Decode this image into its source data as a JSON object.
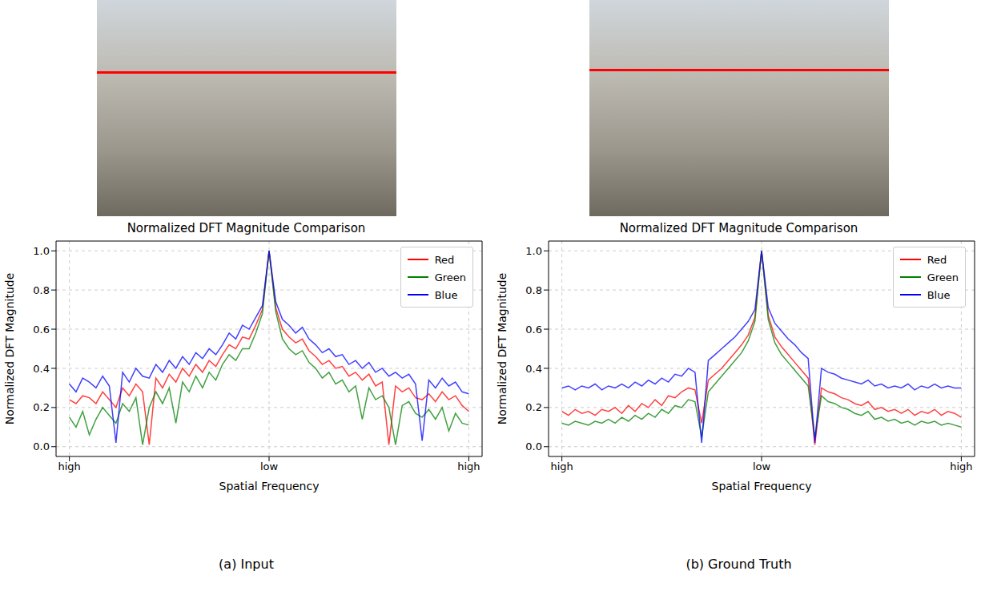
{
  "chart_data": [
    {
      "type": "line",
      "title": "Normalized DFT Magnitude Comparison",
      "caption": "(a) Input",
      "x_label": "Spatial Frequency",
      "y_label": "Normalized DFT Magnitude",
      "x": [
        -30,
        -29,
        -28,
        -27,
        -26,
        -25,
        -24,
        -23,
        -22,
        -21,
        -20,
        -19,
        -18,
        -17,
        -16,
        -15,
        -14,
        -13,
        -12,
        -11,
        -10,
        -9,
        -8,
        -7,
        -6,
        -5,
        -4,
        -3,
        -2,
        -1,
        0,
        1,
        2,
        3,
        4,
        5,
        6,
        7,
        8,
        9,
        10,
        11,
        12,
        13,
        14,
        15,
        16,
        17,
        18,
        19,
        20,
        21,
        22,
        23,
        24,
        25,
        26,
        27,
        28,
        29,
        30
      ],
      "xlim": [
        -32,
        32
      ],
      "xticks": [
        {
          "value": -30,
          "label": "high"
        },
        {
          "value": 0,
          "label": "low"
        },
        {
          "value": 30,
          "label": "high"
        }
      ],
      "ylim": [
        -0.05,
        1.05
      ],
      "yticks": [
        {
          "value": 0,
          "label": "0.0"
        },
        0.2,
        0.4,
        0.6,
        0.8,
        {
          "value": 1,
          "label": "1.0"
        }
      ],
      "grid": true,
      "legend": "upper right",
      "series": [
        {
          "name": "Red",
          "color": "#ff0000",
          "values": [
            0.24,
            0.22,
            0.26,
            0.25,
            0.22,
            0.28,
            0.24,
            0.2,
            0.3,
            0.26,
            0.32,
            0.28,
            0.01,
            0.35,
            0.3,
            0.37,
            0.33,
            0.4,
            0.36,
            0.42,
            0.38,
            0.44,
            0.41,
            0.47,
            0.52,
            0.5,
            0.56,
            0.55,
            0.62,
            0.7,
            1.0,
            0.71,
            0.6,
            0.56,
            0.53,
            0.55,
            0.49,
            0.46,
            0.42,
            0.44,
            0.4,
            0.41,
            0.36,
            0.38,
            0.34,
            0.37,
            0.31,
            0.33,
            0.01,
            0.31,
            0.28,
            0.3,
            0.25,
            0.24,
            0.27,
            0.23,
            0.28,
            0.24,
            0.26,
            0.21,
            0.18
          ]
        },
        {
          "name": "Green",
          "color": "#008000",
          "values": [
            0.15,
            0.1,
            0.18,
            0.06,
            0.14,
            0.2,
            0.16,
            0.12,
            0.22,
            0.18,
            0.25,
            0.01,
            0.2,
            0.28,
            0.22,
            0.3,
            0.12,
            0.33,
            0.28,
            0.36,
            0.3,
            0.38,
            0.34,
            0.42,
            0.47,
            0.44,
            0.5,
            0.5,
            0.58,
            0.68,
            1.0,
            0.69,
            0.55,
            0.5,
            0.47,
            0.49,
            0.43,
            0.4,
            0.35,
            0.38,
            0.32,
            0.34,
            0.28,
            0.31,
            0.14,
            0.3,
            0.24,
            0.26,
            0.2,
            0.01,
            0.21,
            0.23,
            0.17,
            0.15,
            0.19,
            0.14,
            0.2,
            0.08,
            0.17,
            0.12,
            0.11
          ]
        },
        {
          "name": "Blue",
          "color": "#0000ff",
          "values": [
            0.32,
            0.28,
            0.35,
            0.33,
            0.3,
            0.36,
            0.31,
            0.02,
            0.38,
            0.33,
            0.4,
            0.36,
            0.35,
            0.42,
            0.38,
            0.44,
            0.4,
            0.46,
            0.42,
            0.48,
            0.45,
            0.5,
            0.47,
            0.52,
            0.58,
            0.55,
            0.62,
            0.6,
            0.66,
            0.72,
            1.0,
            0.74,
            0.65,
            0.62,
            0.58,
            0.61,
            0.55,
            0.52,
            0.48,
            0.5,
            0.46,
            0.47,
            0.42,
            0.44,
            0.4,
            0.43,
            0.38,
            0.4,
            0.36,
            0.38,
            0.35,
            0.37,
            0.32,
            0.03,
            0.34,
            0.3,
            0.35,
            0.31,
            0.33,
            0.28,
            0.27
          ]
        }
      ]
    },
    {
      "type": "line",
      "title": "Normalized DFT Magnitude Comparison",
      "caption": "(b) Ground Truth",
      "x_label": "Spatial Frequency",
      "y_label": "Normalized DFT Magnitude",
      "x": [
        -30,
        -29,
        -28,
        -27,
        -26,
        -25,
        -24,
        -23,
        -22,
        -21,
        -20,
        -19,
        -18,
        -17,
        -16,
        -15,
        -14,
        -13,
        -12,
        -11,
        -10,
        -9,
        -8,
        -7,
        -6,
        -5,
        -4,
        -3,
        -2,
        -1,
        0,
        1,
        2,
        3,
        4,
        5,
        6,
        7,
        8,
        9,
        10,
        11,
        12,
        13,
        14,
        15,
        16,
        17,
        18,
        19,
        20,
        21,
        22,
        23,
        24,
        25,
        26,
        27,
        28,
        29,
        30
      ],
      "xlim": [
        -32,
        32
      ],
      "xticks": [
        {
          "value": -30,
          "label": "high"
        },
        {
          "value": 0,
          "label": "low"
        },
        {
          "value": 30,
          "label": "high"
        }
      ],
      "ylim": [
        -0.05,
        1.05
      ],
      "yticks": [
        {
          "value": 0,
          "label": "0.0"
        },
        0.2,
        0.4,
        0.6,
        0.8,
        {
          "value": 1,
          "label": "1.0"
        }
      ],
      "grid": true,
      "legend": "upper right",
      "series": [
        {
          "name": "Red",
          "color": "#ff0000",
          "values": [
            0.18,
            0.16,
            0.19,
            0.17,
            0.18,
            0.16,
            0.19,
            0.18,
            0.2,
            0.17,
            0.21,
            0.18,
            0.22,
            0.2,
            0.24,
            0.21,
            0.26,
            0.25,
            0.28,
            0.3,
            0.29,
            0.12,
            0.34,
            0.37,
            0.4,
            0.44,
            0.48,
            0.52,
            0.57,
            0.66,
            1.0,
            0.67,
            0.56,
            0.51,
            0.47,
            0.43,
            0.39,
            0.35,
            0.01,
            0.3,
            0.28,
            0.27,
            0.25,
            0.24,
            0.22,
            0.21,
            0.23,
            0.19,
            0.2,
            0.18,
            0.19,
            0.17,
            0.19,
            0.16,
            0.18,
            0.17,
            0.19,
            0.16,
            0.18,
            0.17,
            0.15
          ]
        },
        {
          "name": "Green",
          "color": "#008000",
          "values": [
            0.12,
            0.11,
            0.13,
            0.12,
            0.11,
            0.13,
            0.12,
            0.14,
            0.12,
            0.15,
            0.13,
            0.16,
            0.14,
            0.17,
            0.15,
            0.19,
            0.17,
            0.21,
            0.2,
            0.24,
            0.23,
            0.05,
            0.28,
            0.32,
            0.36,
            0.4,
            0.44,
            0.48,
            0.54,
            0.64,
            1.0,
            0.65,
            0.53,
            0.47,
            0.43,
            0.39,
            0.35,
            0.31,
            0.05,
            0.26,
            0.23,
            0.22,
            0.2,
            0.19,
            0.17,
            0.16,
            0.18,
            0.14,
            0.15,
            0.13,
            0.14,
            0.12,
            0.13,
            0.11,
            0.13,
            0.12,
            0.13,
            0.11,
            0.12,
            0.11,
            0.1
          ]
        },
        {
          "name": "Blue",
          "color": "#0000ff",
          "values": [
            0.3,
            0.31,
            0.29,
            0.31,
            0.3,
            0.32,
            0.29,
            0.31,
            0.3,
            0.32,
            0.3,
            0.33,
            0.31,
            0.34,
            0.32,
            0.35,
            0.33,
            0.37,
            0.36,
            0.4,
            0.38,
            0.02,
            0.44,
            0.47,
            0.5,
            0.53,
            0.56,
            0.6,
            0.64,
            0.7,
            1.0,
            0.71,
            0.63,
            0.59,
            0.55,
            0.52,
            0.48,
            0.45,
            0.02,
            0.4,
            0.38,
            0.37,
            0.35,
            0.34,
            0.33,
            0.32,
            0.34,
            0.31,
            0.32,
            0.3,
            0.31,
            0.3,
            0.32,
            0.29,
            0.31,
            0.3,
            0.32,
            0.3,
            0.31,
            0.3,
            0.3
          ]
        }
      ]
    }
  ]
}
